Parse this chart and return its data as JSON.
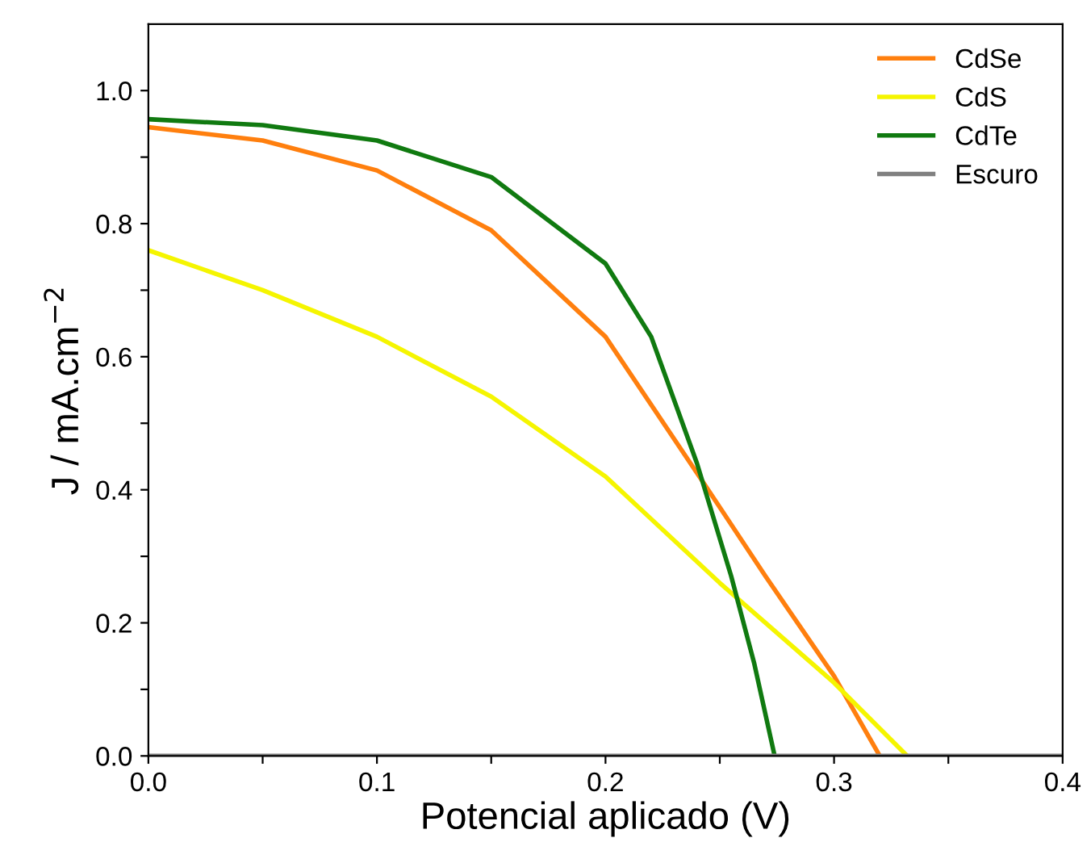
{
  "chart_data": {
    "type": "line",
    "xlabel": "Potencial aplicado (V)",
    "ylabel": "J / mA.cm$^{−2}$",
    "xlim": [
      0,
      0.4
    ],
    "ylim": [
      0,
      1.1
    ],
    "xticks": [
      {
        "value": 0,
        "label": "0.0"
      },
      {
        "value": 0.05,
        "label": null
      },
      0.1,
      {
        "value": 0.15,
        "label": null
      },
      0.2,
      {
        "value": 0.25,
        "label": null
      },
      0.3,
      {
        "value": 0.35,
        "label": null
      },
      0.4
    ],
    "yticks": [
      {
        "value": 0,
        "label": "0.0"
      },
      {
        "value": 0.1,
        "label": null
      },
      0.2,
      {
        "value": 0.3,
        "label": null
      },
      0.4,
      {
        "value": 0.5,
        "label": null
      },
      0.6,
      {
        "value": 0.7,
        "label": null
      },
      0.8,
      {
        "value": 0.9,
        "label": null
      },
      {
        "value": 1,
        "label": "1.0"
      }
    ],
    "grid": false,
    "legend": "top right",
    "marker": "none",
    "line_style": "solid",
    "series": [
      {
        "name": "CdSe",
        "color": "#ff7f0e",
        "x": [
          0,
          0.05,
          0.1,
          0.15,
          0.2,
          0.243,
          0.27,
          0.3,
          0.32
        ],
        "values": [
          0.945,
          0.925,
          0.88,
          0.79,
          0.63,
          0.41,
          0.27,
          0.12,
          0
        ]
      },
      {
        "name": "CdS",
        "color": "#f5f500",
        "x": [
          0,
          0.05,
          0.1,
          0.15,
          0.2,
          0.25,
          0.3,
          0.332
        ],
        "values": [
          0.76,
          0.7,
          0.63,
          0.54,
          0.42,
          0.26,
          0.11,
          0
        ]
      },
      {
        "name": "CdTe",
        "color": "#107a10",
        "x": [
          0,
          0.05,
          0.1,
          0.15,
          0.2,
          0.22,
          0.24,
          0.255,
          0.265,
          0.274
        ],
        "values": [
          0.957,
          0.948,
          0.925,
          0.87,
          0.74,
          0.63,
          0.44,
          0.27,
          0.14,
          0
        ]
      },
      {
        "name": "Escuro",
        "color": "#808080",
        "x": [
          0,
          0.4
        ],
        "values": [
          0,
          0
        ]
      }
    ]
  }
}
